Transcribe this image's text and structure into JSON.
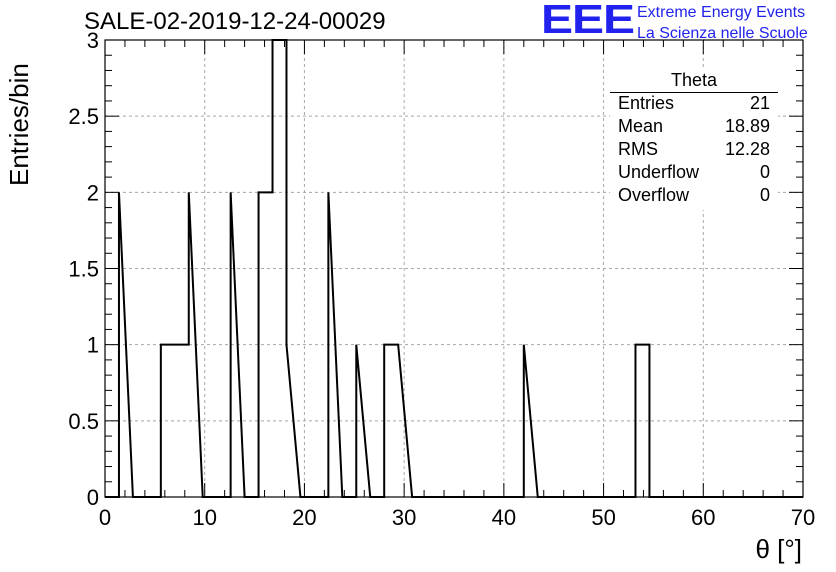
{
  "header": {
    "title": "SALE-02-2019-12-24-00029"
  },
  "logo": {
    "mark": "EEE",
    "line1": "Extreme Energy Events",
    "line2": "La Scienza nelle Scuole",
    "color": "#2222ee"
  },
  "stats": {
    "title": "Theta",
    "rows": [
      {
        "label": "Entries",
        "value": "21"
      },
      {
        "label": "Mean",
        "value": "18.89"
      },
      {
        "label": "RMS",
        "value": "12.28"
      },
      {
        "label": "Underflow",
        "value": "0"
      },
      {
        "label": "Overflow",
        "value": "0"
      }
    ]
  },
  "chart_data": {
    "type": "bar",
    "title": "SALE-02-2019-12-24-00029",
    "xlabel": "θ [°]",
    "ylabel": "Entries/bin",
    "xlim": [
      0,
      70
    ],
    "ylim": [
      0,
      3
    ],
    "grid": true,
    "bin_width": 1.4,
    "x_ticks": [
      0,
      10,
      20,
      30,
      40,
      50,
      60,
      70
    ],
    "y_ticks": [
      0,
      0.5,
      1,
      1.5,
      2,
      2.5,
      3
    ],
    "y_tick_labels": [
      "0",
      "0.5",
      "1",
      "1.5",
      "2",
      "2.5",
      "3"
    ],
    "bins": [
      {
        "x0": 1.4,
        "x1": 2.8,
        "value": 2
      },
      {
        "x0": 5.6,
        "x1": 7.0,
        "value": 1
      },
      {
        "x0": 7.0,
        "x1": 8.4,
        "value": 1
      },
      {
        "x0": 8.4,
        "x1": 9.8,
        "value": 2
      },
      {
        "x0": 12.6,
        "x1": 14.0,
        "value": 2
      },
      {
        "x0": 15.4,
        "x1": 16.8,
        "value": 2
      },
      {
        "x0": 16.8,
        "x1": 18.2,
        "value": 3
      },
      {
        "x0": 18.2,
        "x1": 19.6,
        "value": 1
      },
      {
        "x0": 22.4,
        "x1": 23.8,
        "value": 2
      },
      {
        "x0": 25.2,
        "x1": 26.6,
        "value": 1
      },
      {
        "x0": 28.0,
        "x1": 29.4,
        "value": 1
      },
      {
        "x0": 29.4,
        "x1": 30.8,
        "value": 1
      },
      {
        "x0": 42.0,
        "x1": 43.4,
        "value": 1
      },
      {
        "x0": 53.2,
        "x1": 54.6,
        "value": 1
      }
    ],
    "line_color": "#000000",
    "grid_color": "#a8a8a8"
  }
}
